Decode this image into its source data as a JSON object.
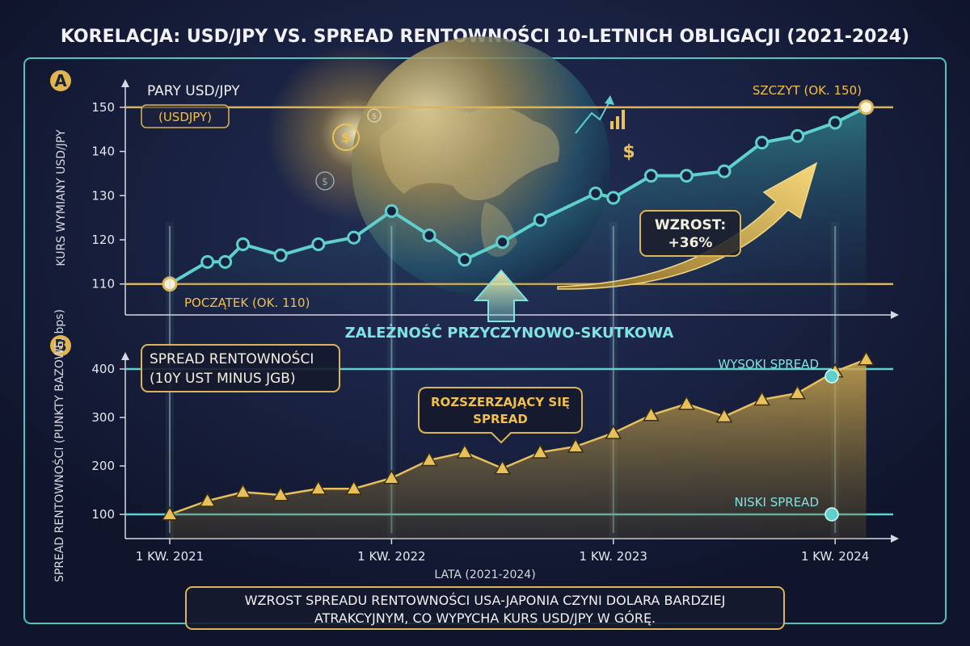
{
  "title": "KORELACJA: USD/JPY VS. SPREAD RENTOWNOŚCI 10-LETNICH OBLIGACJI (2021-2024)",
  "colors": {
    "background": "#141a33",
    "gold": "#d9b458",
    "teal": "#5fd0cc",
    "text": "#e8e8ee"
  },
  "icons": [
    "globe-icon",
    "dollar-coin-icon",
    "growth-arrow-icon",
    "bar-chart-icon"
  ],
  "panel_a": {
    "label": "A",
    "series_title": "PARY USD/JPY",
    "series_code": "(USDJPY)",
    "peak_label": "SZCZYT (OK. 150)",
    "start_label": "POCZĄTEK (OK. 110)",
    "growth_label_line1": "WZROST:",
    "growth_label_line2": "+36%"
  },
  "causal_label": "ZALEŻNOŚĆ PRZYCZYNOWO-SKUTKOWA",
  "panel_b": {
    "label": "B",
    "box_line1": "SPREAD RENTOWNOŚCI",
    "box_line2": "(10Y UST MINUS JGB)",
    "high_label": "WYSOKI SPREAD",
    "low_label": "NISKI SPREAD",
    "callout_line1": "ROZSZERZAJĄCY SIĘ",
    "callout_line2": "SPREAD"
  },
  "footer": {
    "line1": "WZROST SPREADU RENTOWNOŚCI USA-JAPONIA CZYNI DOLARA BARDZIEJ",
    "line2": "ATRAKCYJNYM, CO WYPYCHA KURS USD/JPY W GÓRĘ."
  },
  "chart_data": [
    {
      "type": "line",
      "ylabel": "KURS WYMIANY USD/JPY",
      "ylim": [
        103,
        156
      ],
      "yticks": [
        110,
        120,
        130,
        140,
        150
      ],
      "xlim": [
        2021,
        2024.28
      ],
      "x": [
        2021.0,
        2021.17,
        2021.25,
        2021.33,
        2021.5,
        2021.67,
        2021.83,
        2022.0,
        2022.17,
        2022.33,
        2022.5,
        2022.67,
        2022.92,
        2023.0,
        2023.17,
        2023.33,
        2023.5,
        2023.67,
        2023.83,
        2024.0,
        2024.14
      ],
      "values": [
        110,
        115,
        115,
        119,
        116.5,
        119,
        120.5,
        126.5,
        121,
        115.5,
        119.5,
        124.5,
        130.5,
        129.5,
        134.5,
        134.5,
        135.5,
        142,
        143.5,
        146.5,
        150
      ],
      "reference_lines": [
        110,
        150
      ]
    },
    {
      "type": "line",
      "ylabel": "SPREAD RENTOWNOŚCI (PUNKTY BAZOWE, bps)",
      "xlabel": "LATA (2021-2024)",
      "ylim": [
        50,
        445
      ],
      "yticks": [
        100,
        200,
        300,
        400
      ],
      "xlim": [
        2021,
        2024.28
      ],
      "xticks": [
        2021,
        2022,
        2023,
        2024
      ],
      "xticklabels": [
        "1 KW. 2021",
        "1 KW. 2022",
        "1 KW. 2023",
        "1 KW. 2024"
      ],
      "x": [
        2021.0,
        2021.17,
        2021.33,
        2021.5,
        2021.67,
        2021.83,
        2022.0,
        2022.17,
        2022.33,
        2022.5,
        2022.67,
        2022.83,
        2023.0,
        2023.17,
        2023.33,
        2023.5,
        2023.67,
        2023.83,
        2024.0,
        2024.14
      ],
      "values": [
        100,
        128,
        146,
        140,
        153,
        153,
        175,
        212,
        228,
        195,
        228,
        240,
        268,
        305,
        328,
        302,
        337,
        350,
        395,
        420
      ],
      "reference_lines": [
        100,
        400
      ]
    }
  ]
}
